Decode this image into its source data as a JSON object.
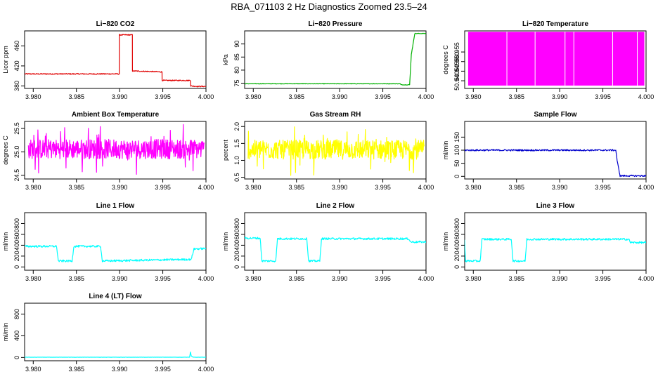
{
  "page": {
    "title": "RBA_071103  2 Hz Diagnostics Zoomed 23.5–24"
  },
  "chart_data": [
    {
      "id": "co2",
      "type": "line",
      "title": "Li−820 CO2",
      "ylabel": "Licor ppm",
      "color": "#e00000",
      "xlim": [
        3.979,
        4.0
      ],
      "ylim": [
        375,
        490
      ],
      "xticks": [
        "3.980",
        "3.985",
        "3.990",
        "3.995",
        "4.000"
      ],
      "yticks": [
        "380",
        "420",
        "460"
      ],
      "noise": 1,
      "series": [
        {
          "name": "",
          "x": [
            3.979,
            3.98996,
            3.98997,
            3.99148,
            3.99149,
            3.99491,
            3.99492,
            3.9982,
            3.99822,
            3.99823,
            3.999,
            4.0
          ],
          "y": [
            404,
            404,
            482,
            482,
            410,
            408,
            391,
            391,
            385,
            380,
            379,
            379
          ]
        }
      ]
    },
    {
      "id": "pressure",
      "type": "line",
      "title": "Li−820 Pressure",
      "ylabel": "kPa",
      "color": "#00b000",
      "xlim": [
        3.979,
        4.0
      ],
      "ylim": [
        73,
        95
      ],
      "xticks": [
        "3.980",
        "3.985",
        "3.990",
        "3.995",
        "4.000"
      ],
      "yticks": [
        "75",
        "80",
        "85",
        "90"
      ],
      "noise": 0.1,
      "series": [
        {
          "name": "",
          "x": [
            3.979,
            3.997,
            3.9971,
            3.9981,
            3.9983,
            3.9987,
            4.0
          ],
          "y": [
            74.8,
            74.8,
            74.4,
            74.4,
            86,
            94,
            94
          ]
        }
      ]
    },
    {
      "id": "temperature",
      "type": "band",
      "title": "Li−820 Temperature",
      "ylabel": "degrees C",
      "color": "#ff00ff",
      "xlim": [
        3.979,
        4.0
      ],
      "ylim": [
        50.936,
        50.966
      ],
      "xticks": [
        "3.980",
        "3.985",
        "3.990",
        "3.995",
        "4.000"
      ],
      "yticks": [
        "50.940",
        "50.945",
        "50.950",
        "50.955"
      ],
      "series": [
        {
          "name": "",
          "ymin": 50.9375,
          "ymax": 50.9655
        }
      ]
    },
    {
      "id": "ambient-box",
      "type": "line",
      "title": "Ambient Box Temperature",
      "ylabel": "degrees C",
      "color": "#ff00ff",
      "xlim": [
        3.979,
        4.0
      ],
      "ylim": [
        24.42,
        25.65
      ],
      "xticks": [
        "3.980",
        "3.985",
        "3.990",
        "3.995",
        "4.000"
      ],
      "yticks": [
        "24.5",
        "25.0",
        "25.5"
      ],
      "noise": 0,
      "series": [
        {
          "name": "",
          "x": [
            3.979,
            4.0
          ],
          "y": [
            25.0,
            25.0
          ],
          "jitter": [
            24.5,
            25.6
          ]
        }
      ]
    },
    {
      "id": "gas-rh",
      "type": "line",
      "title": "Gas Stream RH",
      "ylabel": "percent",
      "color": "#ffff00",
      "xlim": [
        3.979,
        4.0
      ],
      "ylim": [
        0.45,
        2.15
      ],
      "xticks": [
        "3.980",
        "3.985",
        "3.990",
        "3.995",
        "4.000"
      ],
      "yticks": [
        "0.5",
        "1.0",
        "1.5",
        "2.0"
      ],
      "noise": 0,
      "series": [
        {
          "name": "",
          "x": [
            3.979,
            4.0
          ],
          "y": [
            1.0,
            1.0
          ],
          "jitter": [
            0.55,
            2.05
          ]
        }
      ]
    },
    {
      "id": "sample-flow",
      "type": "line",
      "title": "Sample Flow",
      "ylabel": "ml/min",
      "color": "#0000cc",
      "xlim": [
        3.979,
        4.0
      ],
      "ylim": [
        -10,
        210
      ],
      "xticks": [
        "3.980",
        "3.985",
        "3.990",
        "3.995",
        "4.000"
      ],
      "yticks": [
        "0",
        "50",
        "100",
        "150"
      ],
      "noise": 3,
      "series": [
        {
          "name": "",
          "x": [
            3.979,
            3.9965,
            3.9967,
            3.997,
            4.0
          ],
          "y": [
            100,
            100,
            50,
            2,
            2
          ]
        }
      ]
    },
    {
      "id": "line1-flow",
      "type": "line",
      "title": "Line 1 Flow",
      "ylabel": "ml/min",
      "color": "#00ffff",
      "xlim": [
        3.979,
        4.0
      ],
      "ylim": [
        -60,
        1000
      ],
      "xticks": [
        "3.980",
        "3.985",
        "3.990",
        "3.995",
        "4.000"
      ],
      "yticks": [
        "0",
        "200",
        "400",
        "600",
        "800"
      ],
      "noise": 18,
      "series": [
        {
          "name": "",
          "x": [
            3.979,
            3.9827,
            3.9829,
            3.9845,
            3.9847,
            3.9878,
            3.988,
            3.9983,
            3.9986,
            4.0
          ],
          "y": [
            380,
            380,
            110,
            110,
            380,
            380,
            110,
            140,
            330,
            340
          ]
        }
      ]
    },
    {
      "id": "line2-flow",
      "type": "line",
      "title": "Line 2 Flow",
      "ylabel": "ml/min",
      "color": "#00ffff",
      "xlim": [
        3.979,
        4.0
      ],
      "ylim": [
        -60,
        1000
      ],
      "xticks": [
        "3.980",
        "3.985",
        "3.990",
        "3.995",
        "4.000"
      ],
      "yticks": [
        "0",
        "200",
        "400",
        "600",
        "800"
      ],
      "noise": 18,
      "series": [
        {
          "name": "",
          "x": [
            3.979,
            3.9808,
            3.981,
            3.9826,
            3.9828,
            3.9862,
            3.9864,
            3.9877,
            3.9879,
            3.998,
            3.9982,
            4.0
          ],
          "y": [
            530,
            530,
            110,
            110,
            520,
            520,
            110,
            110,
            520,
            520,
            460,
            460
          ]
        }
      ]
    },
    {
      "id": "line3-flow",
      "type": "line",
      "title": "Line 3 Flow",
      "ylabel": "ml/min",
      "color": "#00ffff",
      "xlim": [
        3.979,
        4.0
      ],
      "ylim": [
        -60,
        1000
      ],
      "xticks": [
        "3.980",
        "3.985",
        "3.990",
        "3.995",
        "4.000"
      ],
      "yticks": [
        "0",
        "200",
        "400",
        "600",
        "800"
      ],
      "noise": 18,
      "series": [
        {
          "name": "",
          "x": [
            3.979,
            3.9791,
            3.9793,
            3.9808,
            3.981,
            3.9844,
            3.9846,
            3.986,
            3.9862,
            3.998,
            3.9982,
            4.0
          ],
          "y": [
            500,
            110,
            110,
            110,
            510,
            510,
            110,
            110,
            510,
            510,
            450,
            450
          ]
        }
      ]
    },
    {
      "id": "line4-flow",
      "type": "line",
      "title": "Line 4 (LT) Flow",
      "ylabel": "ml/min",
      "color": "#00ffff",
      "xlim": [
        3.979,
        4.0
      ],
      "ylim": [
        -60,
        1000
      ],
      "xticks": [
        "3.980",
        "3.985",
        "3.990",
        "3.995",
        "4.000"
      ],
      "yticks": [
        "0",
        "400",
        "800"
      ],
      "noise": 2,
      "series": [
        {
          "name": "",
          "x": [
            3.979,
            3.9981,
            3.9982,
            3.9983,
            3.9985,
            4.0
          ],
          "y": [
            5,
            5,
            100,
            30,
            5,
            5
          ]
        }
      ]
    }
  ]
}
